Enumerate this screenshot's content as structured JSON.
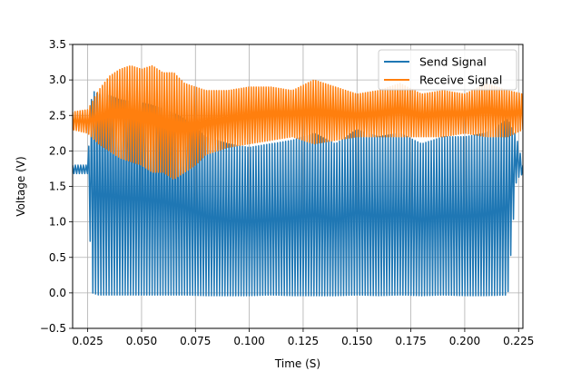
{
  "chart_data": {
    "type": "line",
    "title": "",
    "xlabel": "Time (S)",
    "ylabel": "Voltage (V)",
    "xlim": [
      0.018,
      0.227
    ],
    "ylim": [
      -0.5,
      3.5
    ],
    "xticks": [
      0.025,
      0.05,
      0.075,
      0.1,
      0.125,
      0.15,
      0.175,
      0.2,
      0.225
    ],
    "xtick_labels": [
      "0.025",
      "0.050",
      "0.075",
      "0.100",
      "0.125",
      "0.150",
      "0.175",
      "0.200",
      "0.225"
    ],
    "yticks": [
      -0.5,
      0.0,
      0.5,
      1.0,
      1.5,
      2.0,
      2.5,
      3.0,
      3.5
    ],
    "ytick_labels": [
      "−0.5",
      "0.0",
      "0.5",
      "1.0",
      "1.5",
      "2.0",
      "2.5",
      "3.0",
      "3.5"
    ],
    "grid": true,
    "legend_position": "top-right",
    "series": [
      {
        "name": "Send Signal",
        "color": "#1f77b4",
        "x": [
          0.018,
          0.025,
          0.027,
          0.03,
          0.035,
          0.04,
          0.045,
          0.05,
          0.06,
          0.07,
          0.08,
          0.09,
          0.1,
          0.11,
          0.12,
          0.13,
          0.14,
          0.15,
          0.16,
          0.17,
          0.18,
          0.19,
          0.2,
          0.21,
          0.22,
          0.224,
          0.227
        ],
        "upper": [
          1.8,
          1.8,
          2.85,
          2.8,
          2.78,
          2.72,
          2.7,
          2.68,
          2.6,
          2.45,
          2.2,
          2.1,
          2.05,
          2.1,
          2.15,
          2.25,
          2.1,
          2.3,
          2.2,
          2.25,
          2.1,
          2.2,
          2.2,
          2.25,
          2.45,
          2.2,
          1.8
        ],
        "lower": [
          1.68,
          1.68,
          0.0,
          -0.03,
          -0.03,
          -0.03,
          -0.03,
          -0.03,
          -0.03,
          -0.03,
          -0.04,
          -0.04,
          -0.04,
          -0.03,
          -0.04,
          -0.04,
          -0.04,
          -0.03,
          -0.04,
          -0.03,
          -0.04,
          -0.03,
          -0.04,
          -0.04,
          -0.03,
          1.6,
          1.68
        ]
      },
      {
        "name": "Receive Signal",
        "color": "#ff7f0e",
        "x": [
          0.018,
          0.025,
          0.03,
          0.035,
          0.04,
          0.045,
          0.05,
          0.055,
          0.06,
          0.065,
          0.07,
          0.075,
          0.08,
          0.09,
          0.1,
          0.11,
          0.12,
          0.13,
          0.14,
          0.15,
          0.16,
          0.17,
          0.18,
          0.19,
          0.2,
          0.21,
          0.22,
          0.227
        ],
        "upper": [
          2.55,
          2.58,
          2.85,
          3.05,
          3.15,
          3.2,
          3.15,
          3.2,
          3.1,
          3.1,
          2.95,
          2.9,
          2.85,
          2.85,
          2.9,
          2.9,
          2.85,
          3.0,
          2.9,
          2.8,
          2.85,
          2.95,
          2.8,
          2.85,
          2.8,
          2.95,
          2.85,
          2.8
        ],
        "lower": [
          2.3,
          2.25,
          2.1,
          2.0,
          1.9,
          1.85,
          1.8,
          1.7,
          1.7,
          1.6,
          1.7,
          1.8,
          1.95,
          2.05,
          2.1,
          2.15,
          2.2,
          2.1,
          2.15,
          2.2,
          2.2,
          2.2,
          2.2,
          2.2,
          2.25,
          2.2,
          2.2,
          2.3
        ]
      }
    ]
  }
}
